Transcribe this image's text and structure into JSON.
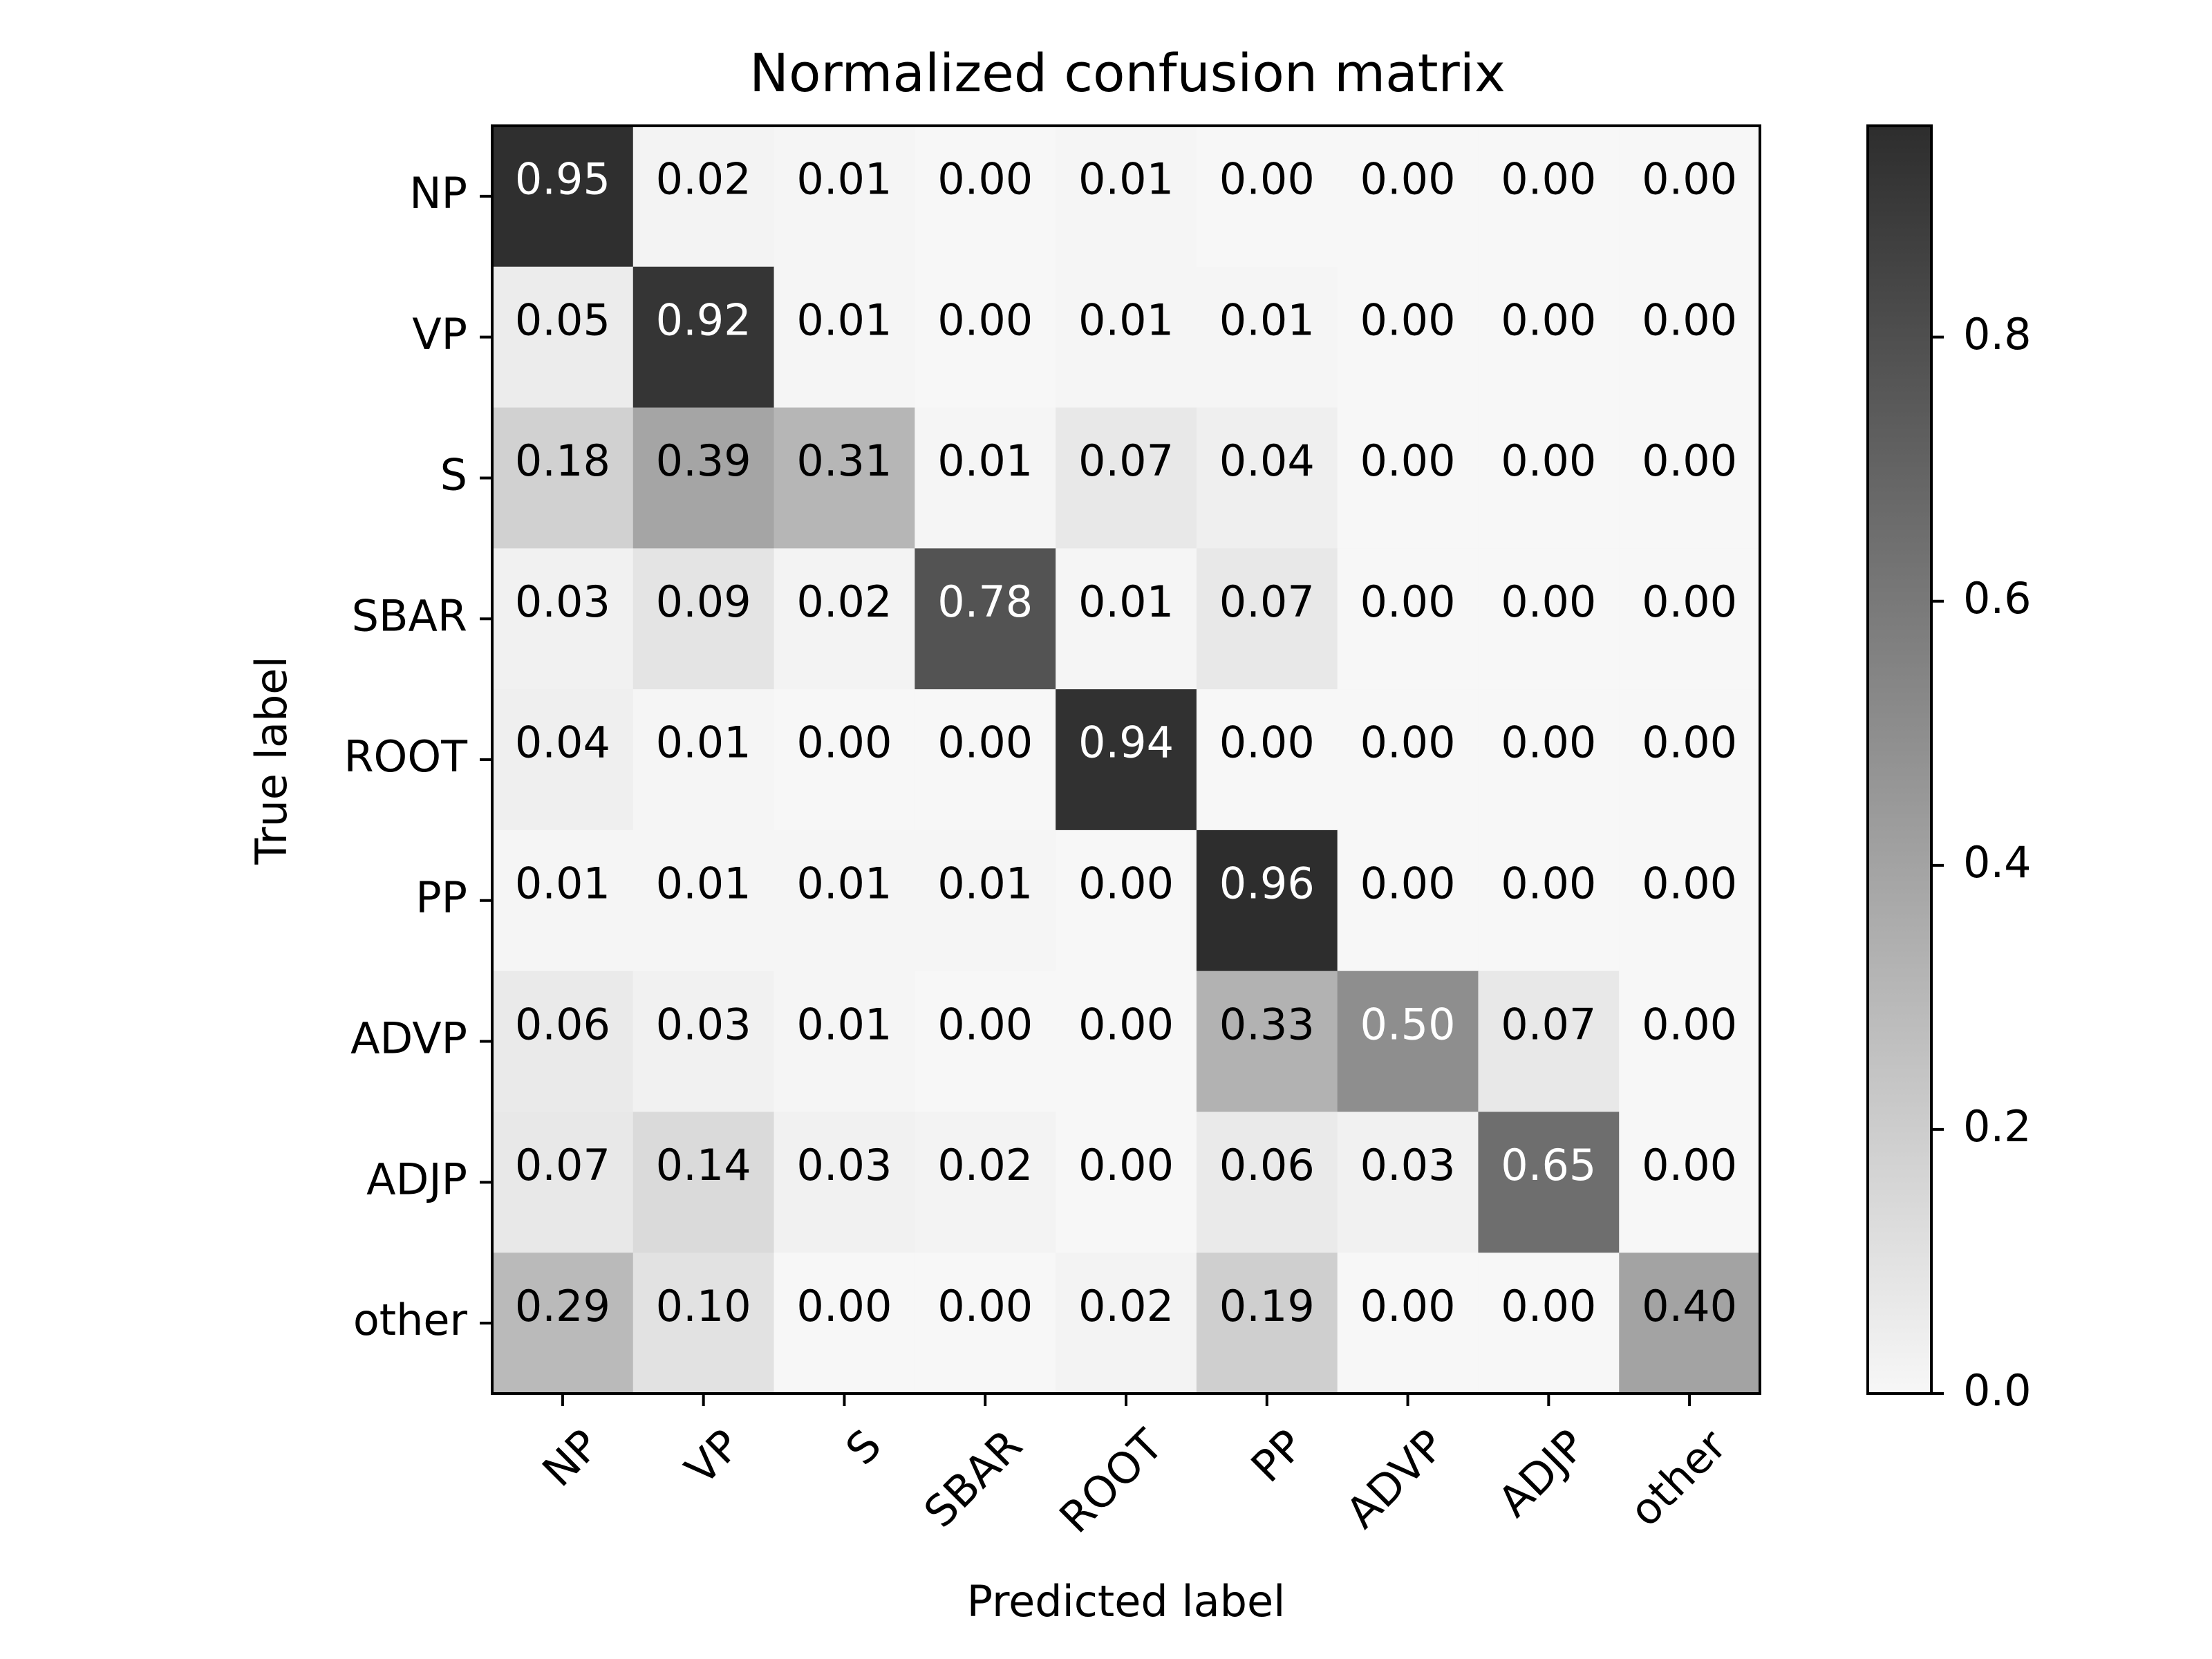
{
  "chart_data": {
    "type": "heatmap",
    "title": "Normalized confusion matrix",
    "xlabel": "Predicted label",
    "ylabel": "True label",
    "x_categories": [
      "NP",
      "VP",
      "S",
      "SBAR",
      "ROOT",
      "PP",
      "ADVP",
      "ADJP",
      "other"
    ],
    "y_categories": [
      "NP",
      "VP",
      "S",
      "SBAR",
      "ROOT",
      "PP",
      "ADVP",
      "ADJP",
      "other"
    ],
    "values": [
      [
        0.95,
        0.02,
        0.01,
        0.0,
        0.01,
        0.0,
        0.0,
        0.0,
        0.0
      ],
      [
        0.05,
        0.92,
        0.01,
        0.0,
        0.01,
        0.01,
        0.0,
        0.0,
        0.0
      ],
      [
        0.18,
        0.39,
        0.31,
        0.01,
        0.07,
        0.04,
        0.0,
        0.0,
        0.0
      ],
      [
        0.03,
        0.09,
        0.02,
        0.78,
        0.01,
        0.07,
        0.0,
        0.0,
        0.0
      ],
      [
        0.04,
        0.01,
        0.0,
        0.0,
        0.94,
        0.0,
        0.0,
        0.0,
        0.0
      ],
      [
        0.01,
        0.01,
        0.01,
        0.01,
        0.0,
        0.96,
        0.0,
        0.0,
        0.0
      ],
      [
        0.06,
        0.03,
        0.01,
        0.0,
        0.0,
        0.33,
        0.5,
        0.07,
        0.0
      ],
      [
        0.07,
        0.14,
        0.03,
        0.02,
        0.0,
        0.06,
        0.03,
        0.65,
        0.0
      ],
      [
        0.29,
        0.1,
        0.0,
        0.0,
        0.02,
        0.19,
        0.0,
        0.0,
        0.4
      ]
    ],
    "value_format": "0.00",
    "colormap": "greys",
    "color_low": "#f7f7f7",
    "color_high": "#2d2d2d",
    "colorbar": {
      "range": [
        0.0,
        0.96
      ],
      "ticks": [
        0.0,
        0.2,
        0.4,
        0.6,
        0.8
      ],
      "tick_labels": [
        "0.0",
        "0.2",
        "0.4",
        "0.6",
        "0.8"
      ]
    },
    "text_color_dark_cells": "#ffffff",
    "text_color_light_cells": "#000000",
    "grid": false
  }
}
